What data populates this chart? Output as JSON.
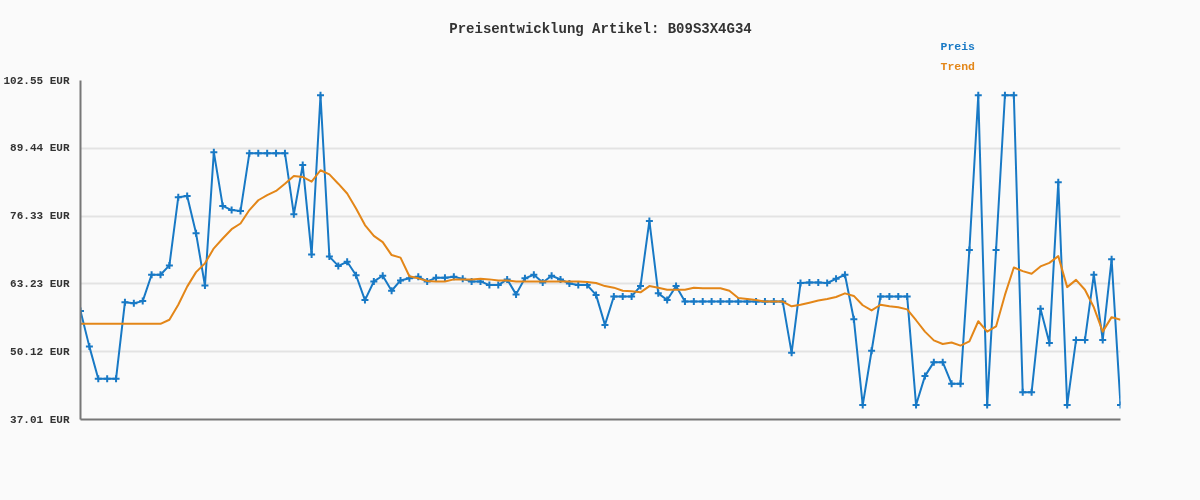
{
  "chart_data": {
    "type": "line",
    "title": "Preisentwicklung Artikel: B09S3X4G34",
    "categories": [
      null,
      null,
      null,
      null,
      null,
      null,
      null,
      null,
      null,
      null,
      null,
      null,
      null,
      null,
      null,
      null,
      null,
      null,
      null,
      null,
      null,
      null,
      null,
      null,
      null,
      null,
      null,
      null,
      null,
      null,
      null,
      null,
      null,
      null,
      null,
      null,
      null,
      null,
      null,
      null,
      null,
      null,
      null,
      null,
      null,
      null,
      null,
      null,
      null,
      null,
      null,
      null,
      null,
      null,
      null,
      null,
      null,
      null,
      null,
      null,
      null,
      null,
      null,
      null,
      null,
      null,
      null,
      null,
      null,
      null,
      null,
      null,
      null,
      null,
      null,
      null,
      null,
      null,
      null,
      null,
      null,
      null,
      null,
      null,
      null,
      null,
      null,
      null,
      null,
      null,
      null,
      null,
      null,
      null,
      null,
      null,
      null,
      null,
      null,
      null,
      null,
      null,
      null,
      null,
      null,
      null,
      null,
      null,
      null,
      null,
      null,
      null,
      null,
      null,
      null,
      null,
      null,
      null
    ],
    "series": [
      {
        "name": "Preis",
        "color": "#1879c5",
        "marker": "cross",
        "values": [
          58.0,
          51.1,
          44.9,
          44.9,
          44.9,
          59.7,
          59.5,
          59.9,
          65.0,
          65.0,
          66.8,
          80.0,
          80.2,
          73.0,
          62.9,
          88.7,
          78.3,
          77.5,
          77.3,
          88.5,
          88.5,
          88.5,
          88.5,
          88.5,
          76.7,
          86.2,
          68.9,
          99.7,
          68.5,
          66.7,
          67.5,
          64.9,
          60.1,
          63.7,
          64.8,
          61.9,
          63.9,
          64.3,
          64.6,
          63.7,
          64.4,
          64.4,
          64.6,
          64.2,
          63.7,
          63.7,
          63.0,
          63.0,
          64.1,
          61.2,
          64.3,
          65.0,
          63.5,
          64.8,
          64.1,
          63.3,
          63.0,
          63.0,
          61.1,
          55.3,
          60.8,
          60.8,
          60.8,
          62.8,
          75.4,
          61.4,
          60.1,
          62.8,
          59.8,
          59.8,
          59.8,
          59.8,
          59.8,
          59.8,
          59.8,
          59.8,
          59.8,
          59.8,
          59.8,
          59.8,
          49.9,
          63.4,
          63.5,
          63.5,
          63.4,
          64.2,
          65.0,
          56.4,
          39.8,
          50.3,
          60.8,
          60.8,
          60.8,
          60.8,
          39.8,
          45.4,
          48.1,
          48.1,
          43.9,
          43.9,
          69.8,
          99.7,
          39.8,
          69.8,
          99.7,
          99.7,
          42.3,
          42.3,
          58.4,
          51.8,
          82.9,
          39.8,
          52.4,
          52.4,
          65.0,
          52.4,
          68.0,
          39.8
        ]
      },
      {
        "name": "Trend",
        "color": "#e38618",
        "marker": "none",
        "values": [
          55.5,
          55.5,
          55.5,
          55.5,
          55.5,
          55.5,
          55.5,
          55.5,
          55.5,
          55.5,
          56.3,
          59.2,
          62.7,
          65.5,
          67.2,
          70.1,
          72.0,
          73.8,
          74.9,
          77.5,
          79.4,
          80.4,
          81.2,
          82.6,
          84.1,
          83.9,
          83.0,
          85.2,
          84.4,
          82.6,
          80.7,
          77.8,
          74.6,
          72.5,
          71.3,
          68.8,
          68.3,
          64.7,
          64.3,
          63.8,
          63.7,
          63.7,
          64.1,
          64.1,
          64.1,
          64.2,
          64.1,
          63.9,
          63.9,
          63.7,
          63.7,
          63.7,
          63.7,
          63.7,
          63.7,
          63.7,
          63.7,
          63.6,
          63.4,
          62.8,
          62.5,
          61.9,
          61.8,
          61.6,
          62.8,
          62.5,
          62.1,
          62.1,
          62.1,
          62.5,
          62.4,
          62.4,
          62.4,
          61.9,
          60.5,
          60.3,
          60.1,
          59.8,
          59.8,
          59.8,
          58.9,
          59.2,
          59.6,
          60.0,
          60.3,
          60.7,
          61.4,
          60.9,
          59.1,
          58.1,
          59.2,
          58.9,
          58.7,
          58.3,
          56.2,
          54.0,
          52.3,
          51.6,
          51.9,
          51.3,
          52.1,
          56.0,
          54.0,
          55.0,
          61.1,
          66.4,
          65.7,
          65.2,
          66.6,
          67.3,
          68.6,
          62.6,
          64.0,
          62.1,
          58.7,
          54.0,
          56.8,
          56.3
        ]
      }
    ],
    "ylim": [
      37.01,
      102.55
    ],
    "yticks": [
      {
        "value": 37.01,
        "label": "37.01 EUR"
      },
      {
        "value": 50.12,
        "label": "50.12 EUR"
      },
      {
        "value": 63.23,
        "label": "63.23 EUR"
      },
      {
        "value": 76.33,
        "label": "76.33 EUR"
      },
      {
        "value": 89.44,
        "label": "89.44 EUR"
      },
      {
        "value": 102.55,
        "label": "102.55 EUR"
      }
    ],
    "grid": "y",
    "legend": "top right",
    "tick_labels": "y"
  }
}
